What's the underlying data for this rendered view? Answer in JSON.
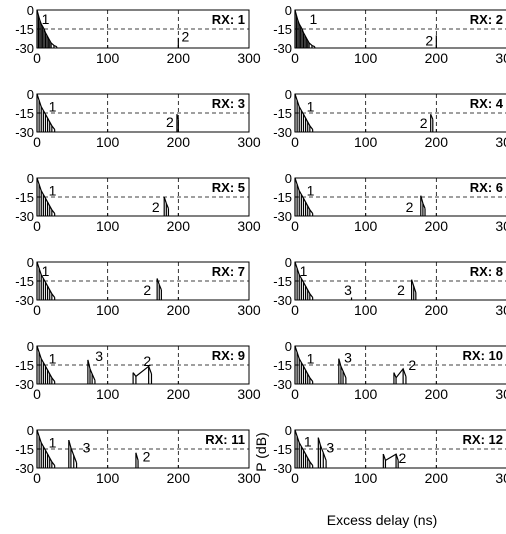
{
  "figure": {
    "xlabel": "Excess delay (ns)",
    "ylabel": "P (dB)"
  },
  "chart_data": {
    "type": "line",
    "xlim": [
      0,
      300
    ],
    "ylim": [
      -30,
      0
    ],
    "xticks": [
      0,
      100,
      200,
      300
    ],
    "yticks": [
      0,
      -15,
      -30
    ],
    "grid": "dashed",
    "panels": [
      {
        "panel_label": "RX: 1",
        "annotations": [
          {
            "text": "1",
            "x": 12,
            "y": -7
          },
          {
            "text": "2",
            "x": 210,
            "y": -21
          }
        ],
        "clusters": [
          [
            [
              0,
              0
            ],
            [
              2,
              -4
            ],
            [
              4,
              -8
            ],
            [
              6,
              -11
            ],
            [
              8,
              -13
            ],
            [
              10,
              -15
            ],
            [
              12,
              -18
            ],
            [
              14,
              -20
            ],
            [
              16,
              -22
            ],
            [
              18,
              -24
            ],
            [
              20,
              -26
            ],
            [
              24,
              -28
            ],
            [
              28,
              -29
            ]
          ],
          [
            [
              200,
              -22
            ]
          ]
        ]
      },
      {
        "panel_label": "RX: 2",
        "annotations": [
          {
            "text": "1",
            "x": 26,
            "y": -7
          },
          {
            "text": "2",
            "x": 190,
            "y": -24
          }
        ],
        "clusters": [
          [
            [
              0,
              0
            ],
            [
              2,
              -4
            ],
            [
              4,
              -8
            ],
            [
              6,
              -11
            ],
            [
              8,
              -13
            ],
            [
              10,
              -15
            ],
            [
              12,
              -18
            ],
            [
              14,
              -20
            ],
            [
              16,
              -22
            ],
            [
              18,
              -24
            ],
            [
              20,
              -26
            ],
            [
              24,
              -28
            ],
            [
              28,
              -29
            ]
          ],
          [
            [
              200,
              -20
            ]
          ]
        ]
      },
      {
        "panel_label": "RX: 3",
        "annotations": [
          {
            "text": "1",
            "x": 22,
            "y": -10
          },
          {
            "text": "2",
            "x": 188,
            "y": -22
          }
        ],
        "clusters": [
          [
            [
              0,
              0
            ],
            [
              3,
              -5
            ],
            [
              6,
              -10
            ],
            [
              9,
              -13
            ],
            [
              12,
              -16
            ],
            [
              15,
              -19
            ],
            [
              18,
              -22
            ],
            [
              21,
              -25
            ],
            [
              25,
              -28
            ]
          ],
          [
            [
              198,
              -16
            ],
            [
              200,
              -20
            ]
          ]
        ]
      },
      {
        "panel_label": "RX: 4",
        "annotations": [
          {
            "text": "1",
            "x": 22,
            "y": -10
          },
          {
            "text": "2",
            "x": 182,
            "y": -23
          }
        ],
        "clusters": [
          [
            [
              0,
              0
            ],
            [
              3,
              -5
            ],
            [
              6,
              -10
            ],
            [
              9,
              -13
            ],
            [
              12,
              -16
            ],
            [
              15,
              -19
            ],
            [
              18,
              -22
            ],
            [
              21,
              -25
            ],
            [
              25,
              -28
            ]
          ],
          [
            [
              192,
              -16
            ],
            [
              195,
              -20
            ]
          ]
        ]
      },
      {
        "panel_label": "RX: 5",
        "annotations": [
          {
            "text": "1",
            "x": 22,
            "y": -10
          },
          {
            "text": "2",
            "x": 168,
            "y": -23
          }
        ],
        "clusters": [
          [
            [
              0,
              0
            ],
            [
              3,
              -5
            ],
            [
              6,
              -10
            ],
            [
              9,
              -13
            ],
            [
              12,
              -16
            ],
            [
              15,
              -19
            ],
            [
              18,
              -22
            ],
            [
              21,
              -25
            ],
            [
              25,
              -28
            ]
          ],
          [
            [
              180,
              -15
            ],
            [
              183,
              -20
            ],
            [
              186,
              -24
            ]
          ]
        ]
      },
      {
        "panel_label": "RX: 6",
        "annotations": [
          {
            "text": "1",
            "x": 22,
            "y": -10
          },
          {
            "text": "2",
            "x": 162,
            "y": -23
          }
        ],
        "clusters": [
          [
            [
              0,
              0
            ],
            [
              3,
              -5
            ],
            [
              6,
              -10
            ],
            [
              9,
              -13
            ],
            [
              12,
              -16
            ],
            [
              15,
              -19
            ],
            [
              18,
              -22
            ],
            [
              21,
              -25
            ],
            [
              25,
              -28
            ]
          ],
          [
            [
              178,
              -14
            ],
            [
              181,
              -20
            ],
            [
              184,
              -24
            ]
          ]
        ]
      },
      {
        "panel_label": "RX: 7",
        "annotations": [
          {
            "text": "1",
            "x": 12,
            "y": -7
          },
          {
            "text": "2",
            "x": 156,
            "y": -22
          }
        ],
        "clusters": [
          [
            [
              0,
              0
            ],
            [
              3,
              -5
            ],
            [
              6,
              -10
            ],
            [
              9,
              -13
            ],
            [
              12,
              -16
            ],
            [
              15,
              -19
            ],
            [
              18,
              -22
            ],
            [
              21,
              -25
            ],
            [
              25,
              -28
            ]
          ],
          [
            [
              170,
              -13
            ],
            [
              173,
              -18
            ],
            [
              176,
              -22
            ]
          ]
        ]
      },
      {
        "panel_label": "RX: 8",
        "annotations": [
          {
            "text": "1",
            "x": 12,
            "y": -7
          },
          {
            "text": "3",
            "x": 75,
            "y": -22
          },
          {
            "text": "2",
            "x": 150,
            "y": -22
          }
        ],
        "clusters": [
          [
            [
              0,
              0
            ],
            [
              3,
              -5
            ],
            [
              6,
              -10
            ],
            [
              9,
              -13
            ],
            [
              12,
              -16
            ],
            [
              15,
              -19
            ],
            [
              18,
              -22
            ],
            [
              21,
              -25
            ],
            [
              25,
              -28
            ]
          ],
          [
            [
              80,
              -28
            ]
          ],
          [
            [
              165,
              -14
            ],
            [
              168,
              -19
            ],
            [
              171,
              -24
            ]
          ]
        ]
      },
      {
        "panel_label": "RX: 9",
        "annotations": [
          {
            "text": "1",
            "x": 22,
            "y": -10
          },
          {
            "text": "3",
            "x": 88,
            "y": -8
          },
          {
            "text": "2",
            "x": 156,
            "y": -12
          }
        ],
        "clusters": [
          [
            [
              0,
              0
            ],
            [
              3,
              -5
            ],
            [
              6,
              -10
            ],
            [
              9,
              -13
            ],
            [
              12,
              -16
            ],
            [
              15,
              -19
            ],
            [
              18,
              -22
            ],
            [
              21,
              -25
            ],
            [
              25,
              -28
            ]
          ],
          [
            [
              72,
              -11
            ],
            [
              75,
              -18
            ],
            [
              78,
              -22
            ],
            [
              82,
              -27
            ]
          ],
          [
            [
              136,
              -21
            ],
            [
              140,
              -24
            ],
            [
              158,
              -16
            ],
            [
              162,
              -22
            ]
          ]
        ]
      },
      {
        "panel_label": "RX: 10",
        "annotations": [
          {
            "text": "1",
            "x": 22,
            "y": -10
          },
          {
            "text": "3",
            "x": 75,
            "y": -9
          },
          {
            "text": "2",
            "x": 166,
            "y": -15
          }
        ],
        "clusters": [
          [
            [
              0,
              0
            ],
            [
              3,
              -5
            ],
            [
              6,
              -10
            ],
            [
              9,
              -13
            ],
            [
              12,
              -16
            ],
            [
              15,
              -19
            ],
            [
              18,
              -22
            ],
            [
              21,
              -25
            ],
            [
              25,
              -28
            ]
          ],
          [
            [
              62,
              -10
            ],
            [
              65,
              -16
            ],
            [
              68,
              -20
            ],
            [
              72,
              -25
            ]
          ],
          [
            [
              140,
              -21
            ],
            [
              143,
              -25
            ],
            [
              153,
              -18
            ],
            [
              157,
              -24
            ]
          ]
        ]
      },
      {
        "panel_label": "RX: 11",
        "annotations": [
          {
            "text": "1",
            "x": 22,
            "y": -10
          },
          {
            "text": "3",
            "x": 70,
            "y": -14
          },
          {
            "text": "2",
            "x": 155,
            "y": -21
          }
        ],
        "clusters": [
          [
            [
              0,
              0
            ],
            [
              3,
              -5
            ],
            [
              6,
              -10
            ],
            [
              9,
              -13
            ],
            [
              12,
              -16
            ],
            [
              15,
              -19
            ],
            [
              18,
              -22
            ],
            [
              21,
              -25
            ],
            [
              25,
              -28
            ]
          ],
          [
            [
              45,
              -8
            ],
            [
              48,
              -14
            ],
            [
              52,
              -20
            ],
            [
              56,
              -26
            ]
          ],
          [
            [
              140,
              -18
            ],
            [
              143,
              -24
            ]
          ]
        ]
      },
      {
        "panel_label": "RX: 12",
        "annotations": [
          {
            "text": "1",
            "x": 18,
            "y": -9
          },
          {
            "text": "3",
            "x": 50,
            "y": -14
          },
          {
            "text": "2",
            "x": 152,
            "y": -22
          }
        ],
        "clusters": [
          [
            [
              0,
              0
            ],
            [
              3,
              -5
            ],
            [
              6,
              -10
            ],
            [
              9,
              -13
            ],
            [
              12,
              -16
            ],
            [
              15,
              -19
            ],
            [
              18,
              -22
            ],
            [
              21,
              -25
            ],
            [
              25,
              -28
            ]
          ],
          [
            [
              33,
              -6
            ],
            [
              36,
              -12
            ],
            [
              40,
              -18
            ],
            [
              44,
              -24
            ]
          ],
          [
            [
              125,
              -19
            ],
            [
              128,
              -24
            ],
            [
              143,
              -19
            ],
            [
              146,
              -24
            ]
          ]
        ]
      }
    ]
  }
}
